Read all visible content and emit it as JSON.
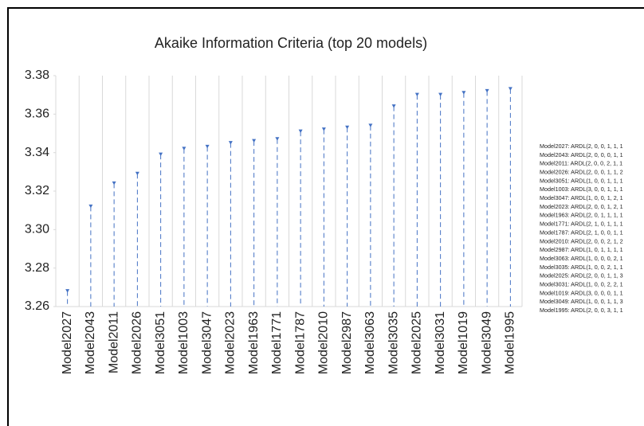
{
  "chart_data": {
    "type": "lollipop",
    "title": "Akaike Information Criteria (top 20 models)",
    "categories": [
      "Model2027",
      "Model2043",
      "Model2011",
      "Model2026",
      "Model3051",
      "Model1003",
      "Model3047",
      "Model2023",
      "Model1963",
      "Model1771",
      "Model1787",
      "Model2010",
      "Model2987",
      "Model3063",
      "Model3035",
      "Model2025",
      "Model3031",
      "Model1019",
      "Model3049",
      "Model1995"
    ],
    "values": [
      3.268,
      3.312,
      3.324,
      3.329,
      3.339,
      3.342,
      3.343,
      3.345,
      3.346,
      3.347,
      3.351,
      3.352,
      3.353,
      3.354,
      3.364,
      3.37,
      3.37,
      3.371,
      3.372,
      3.373
    ],
    "color": "#4472c4",
    "ylim": [
      3.26,
      3.38
    ],
    "yticks": [
      3.26,
      3.28,
      {
        "value": 3.3,
        "label": "3.30"
      },
      3.32,
      3.34,
      3.36,
      3.38
    ],
    "grid": true,
    "legend": [
      "Model2027: ARDL(2, 0, 0, 1, 1, 1",
      "Model2043: ARDL(2, 0, 0, 0, 1, 1",
      "Model2011: ARDL(2, 0, 0, 2, 1, 1",
      "Model2026: ARDL(2, 0, 0, 1, 1, 2",
      "Model3051: ARDL(1, 0, 0, 1, 1, 1",
      "Model1003: ARDL(3, 0, 0, 1, 1, 1",
      "Model3047: ARDL(1, 0, 0, 1, 2, 1",
      "Model2023: ARDL(2, 0, 0, 1, 2, 1",
      "Model1963: ARDL(2, 0, 1, 1, 1, 1",
      "Model1771: ARDL(2, 1, 0, 1, 1, 1",
      "Model1787: ARDL(2, 1, 0, 0, 1, 1",
      "Model2010: ARDL(2, 0, 0, 2, 1, 2",
      "Model2987: ARDL(1, 0, 1, 1, 1, 1",
      "Model3063: ARDL(1, 0, 0, 0, 2, 1",
      "Model3035: ARDL(1, 0, 0, 2, 1, 1",
      "Model2025: ARDL(2, 0, 0, 1, 1, 3",
      "Model3031: ARDL(1, 0, 0, 2, 2, 1",
      "Model1019: ARDL(3, 0, 0, 0, 1, 1",
      "Model3049: ARDL(1, 0, 0, 1, 1, 3",
      "Model1995: ARDL(2, 0, 0, 3, 1, 1"
    ]
  }
}
